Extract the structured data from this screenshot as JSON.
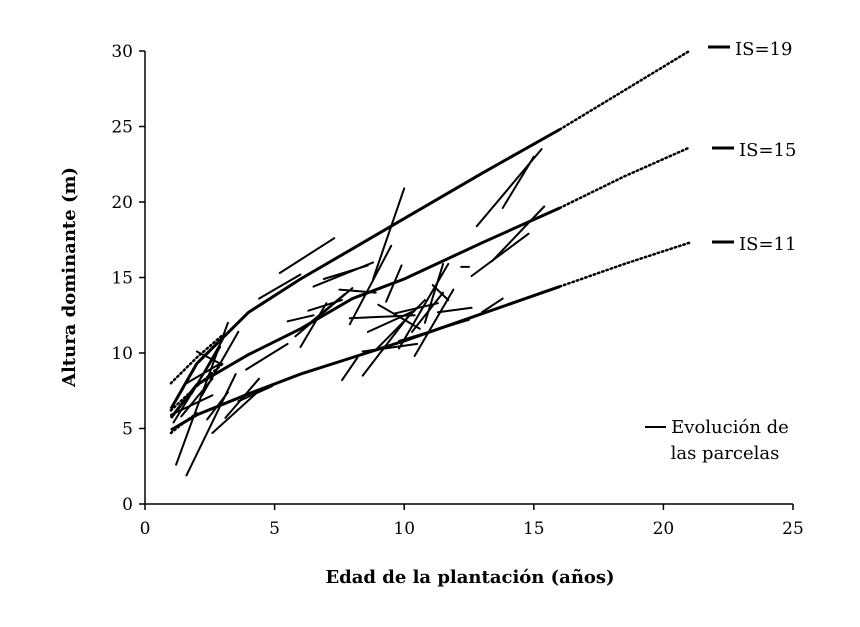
{
  "chart_data": {
    "type": "line",
    "title": "",
    "xlabel": "Edad de la plantación (años)",
    "ylabel": "Altura dominante (m)",
    "xlim": [
      0,
      25
    ],
    "ylim": [
      0,
      30
    ],
    "xticks": [
      "0",
      "5",
      "10",
      "15",
      "20",
      "25"
    ],
    "yticks": [
      "0",
      "5",
      "10",
      "15",
      "20",
      "25",
      "30"
    ],
    "grid": false,
    "site_index_curves": [
      {
        "name": "IS=19",
        "solid": [
          [
            1,
            6.3
          ],
          [
            2,
            9.3
          ],
          [
            4,
            12.7
          ],
          [
            6,
            14.9
          ],
          [
            8,
            16.9
          ],
          [
            10,
            18.9
          ],
          [
            13,
            21.9
          ],
          [
            16,
            24.8
          ]
        ],
        "extrapolated_start": [
          [
            1,
            8.0
          ],
          [
            2,
            9.7
          ],
          [
            3,
            11.2
          ]
        ],
        "extrapolated_end": [
          [
            16,
            24.8
          ],
          [
            18.5,
            27.4
          ],
          [
            21,
            30.0
          ]
        ]
      },
      {
        "name": "IS=15",
        "solid": [
          [
            1,
            5.7
          ],
          [
            2,
            7.9
          ],
          [
            4,
            9.9
          ],
          [
            6,
            11.6
          ],
          [
            8,
            13.6
          ],
          [
            10,
            14.9
          ],
          [
            13,
            17.3
          ],
          [
            16,
            19.6
          ]
        ],
        "extrapolated_start": [
          [
            1,
            6.2
          ],
          [
            2,
            7.8
          ],
          [
            3,
            9.3
          ]
        ],
        "extrapolated_end": [
          [
            16,
            19.6
          ],
          [
            18.5,
            21.7
          ],
          [
            21,
            23.6
          ]
        ]
      },
      {
        "name": "IS=11",
        "solid": [
          [
            1,
            4.9
          ],
          [
            2,
            5.9
          ],
          [
            4,
            7.3
          ],
          [
            6,
            8.6
          ],
          [
            8,
            9.7
          ],
          [
            10,
            10.8
          ],
          [
            13,
            12.6
          ],
          [
            16,
            14.4
          ]
        ],
        "extrapolated_start": [
          [
            1,
            4.7
          ],
          [
            1.5,
            5.4
          ],
          [
            2,
            6.0
          ]
        ],
        "extrapolated_end": [
          [
            16,
            14.4
          ],
          [
            18.5,
            15.9
          ],
          [
            21,
            17.3
          ]
        ]
      }
    ],
    "plot_segments": [
      [
        [
          1.2,
          2.6
        ],
        [
          3.2,
          12.0
        ]
      ],
      [
        [
          1.6,
          1.9
        ],
        [
          3.5,
          8.6
        ]
      ],
      [
        [
          1.1,
          5.4
        ],
        [
          2.9,
          10.4
        ]
      ],
      [
        [
          1.4,
          5.8
        ],
        [
          2.6,
          8.3
        ]
      ],
      [
        [
          2.0,
          10.1
        ],
        [
          2.9,
          9.3
        ]
      ],
      [
        [
          1.6,
          8.0
        ],
        [
          2.9,
          9.3
        ]
      ],
      [
        [
          2.4,
          5.6
        ],
        [
          3.2,
          7.4
        ]
      ],
      [
        [
          2.6,
          4.7
        ],
        [
          4.4,
          7.5
        ]
      ],
      [
        [
          3.1,
          5.7
        ],
        [
          4.4,
          8.3
        ]
      ],
      [
        [
          3.6,
          6.8
        ],
        [
          4.9,
          7.8
        ]
      ],
      [
        [
          3.9,
          8.9
        ],
        [
          5.5,
          10.6
        ]
      ],
      [
        [
          4.4,
          13.6
        ],
        [
          6.0,
          15.2
        ]
      ],
      [
        [
          5.2,
          15.3
        ],
        [
          7.3,
          17.6
        ]
      ],
      [
        [
          5.5,
          12.1
        ],
        [
          6.5,
          12.5
        ]
      ],
      [
        [
          6.0,
          10.4
        ],
        [
          7.0,
          13.3
        ]
      ],
      [
        [
          6.3,
          12.8
        ],
        [
          7.6,
          13.5
        ]
      ],
      [
        [
          6.9,
          14.9
        ],
        [
          8.6,
          15.8
        ]
      ],
      [
        [
          7.6,
          8.2
        ],
        [
          8.2,
          9.7
        ]
      ],
      [
        [
          7.5,
          14.2
        ],
        [
          8.9,
          14.0
        ]
      ],
      [
        [
          8.4,
          8.5
        ],
        [
          10.1,
          12.3
        ]
      ],
      [
        [
          8.6,
          11.4
        ],
        [
          10.4,
          12.8
        ]
      ],
      [
        [
          8.8,
          14.9
        ],
        [
          10.0,
          20.9
        ]
      ],
      [
        [
          8.9,
          10.2
        ],
        [
          10.8,
          13.5
        ]
      ],
      [
        [
          9.3,
          13.4
        ],
        [
          9.9,
          15.8
        ]
      ],
      [
        [
          9.6,
          12.6
        ],
        [
          11.3,
          13.3
        ]
      ],
      [
        [
          9.8,
          10.3
        ],
        [
          11.7,
          15.9
        ]
      ],
      [
        [
          10.3,
          11.4
        ],
        [
          11.5,
          14.0
        ]
      ],
      [
        [
          10.4,
          9.8
        ],
        [
          11.9,
          14.2
        ]
      ],
      [
        [
          11.3,
          12.7
        ],
        [
          12.6,
          13.0
        ]
      ],
      [
        [
          12.2,
          15.7
        ],
        [
          12.5,
          15.7
        ]
      ],
      [
        [
          12.6,
          15.1
        ],
        [
          14.8,
          17.9
        ]
      ],
      [
        [
          12.8,
          18.4
        ],
        [
          15.3,
          23.5
        ]
      ],
      [
        [
          13.8,
          13.6
        ],
        [
          13.0,
          12.7
        ]
      ],
      [
        [
          13.4,
          16.1
        ],
        [
          15.4,
          19.7
        ]
      ],
      [
        [
          13.8,
          19.6
        ],
        [
          15.0,
          23.0
        ]
      ],
      [
        [
          7.9,
          12.3
        ],
        [
          10.4,
          12.5
        ]
      ],
      [
        [
          6.3,
          11.9
        ],
        [
          7.7,
          13.9
        ]
      ],
      [
        [
          7.9,
          11.9
        ],
        [
          9.5,
          17.1
        ]
      ],
      [
        [
          9.0,
          13.2
        ],
        [
          10.6,
          11.6
        ]
      ],
      [
        [
          10.8,
          12.0
        ],
        [
          11.5,
          15.9
        ]
      ],
      [
        [
          8.4,
          10.1
        ],
        [
          10.5,
          10.6
        ]
      ],
      [
        [
          9.8,
          10.8
        ],
        [
          12.5,
          12.2
        ]
      ],
      [
        [
          11.7,
          13.5
        ],
        [
          11.1,
          14.5
        ]
      ],
      [
        [
          6.5,
          14.4
        ],
        [
          8.8,
          16.0
        ]
      ],
      [
        [
          5.8,
          11.1
        ],
        [
          8.0,
          14.3
        ]
      ],
      [
        [
          2.2,
          7.2
        ],
        [
          3.6,
          11.4
        ]
      ],
      [
        [
          1.0,
          5.9
        ],
        [
          2.6,
          7.2
        ]
      ],
      [
        [
          1.8,
          7.3
        ],
        [
          3.0,
          10.9
        ]
      ]
    ],
    "curve_labels": [
      "IS=19",
      "IS=15",
      "IS=11"
    ],
    "legend": {
      "label": "Evolución de las parcelas",
      "placement": "bottom-right"
    }
  }
}
